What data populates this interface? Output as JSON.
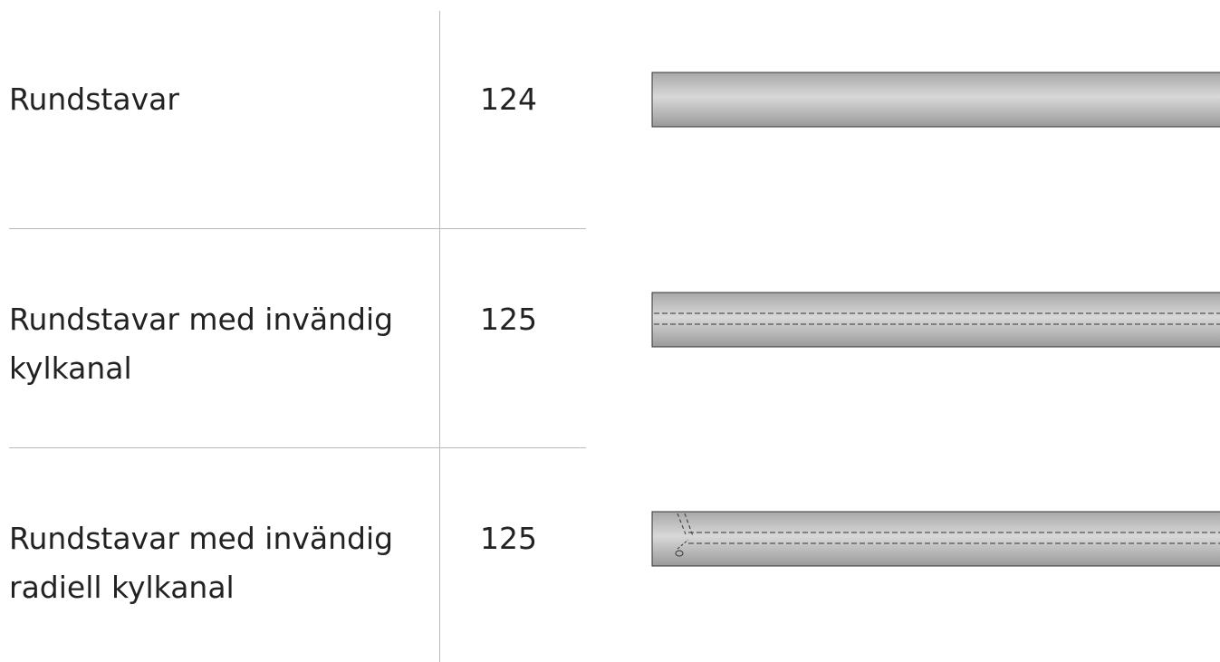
{
  "table": {
    "rows": [
      [
        "Rundstavar",
        "124"
      ],
      [
        "Rundstavar med invändig kylkanal",
        "125"
      ],
      [
        "Rundstavar med invändig radiell kylkanal",
        "125"
      ]
    ]
  }
}
